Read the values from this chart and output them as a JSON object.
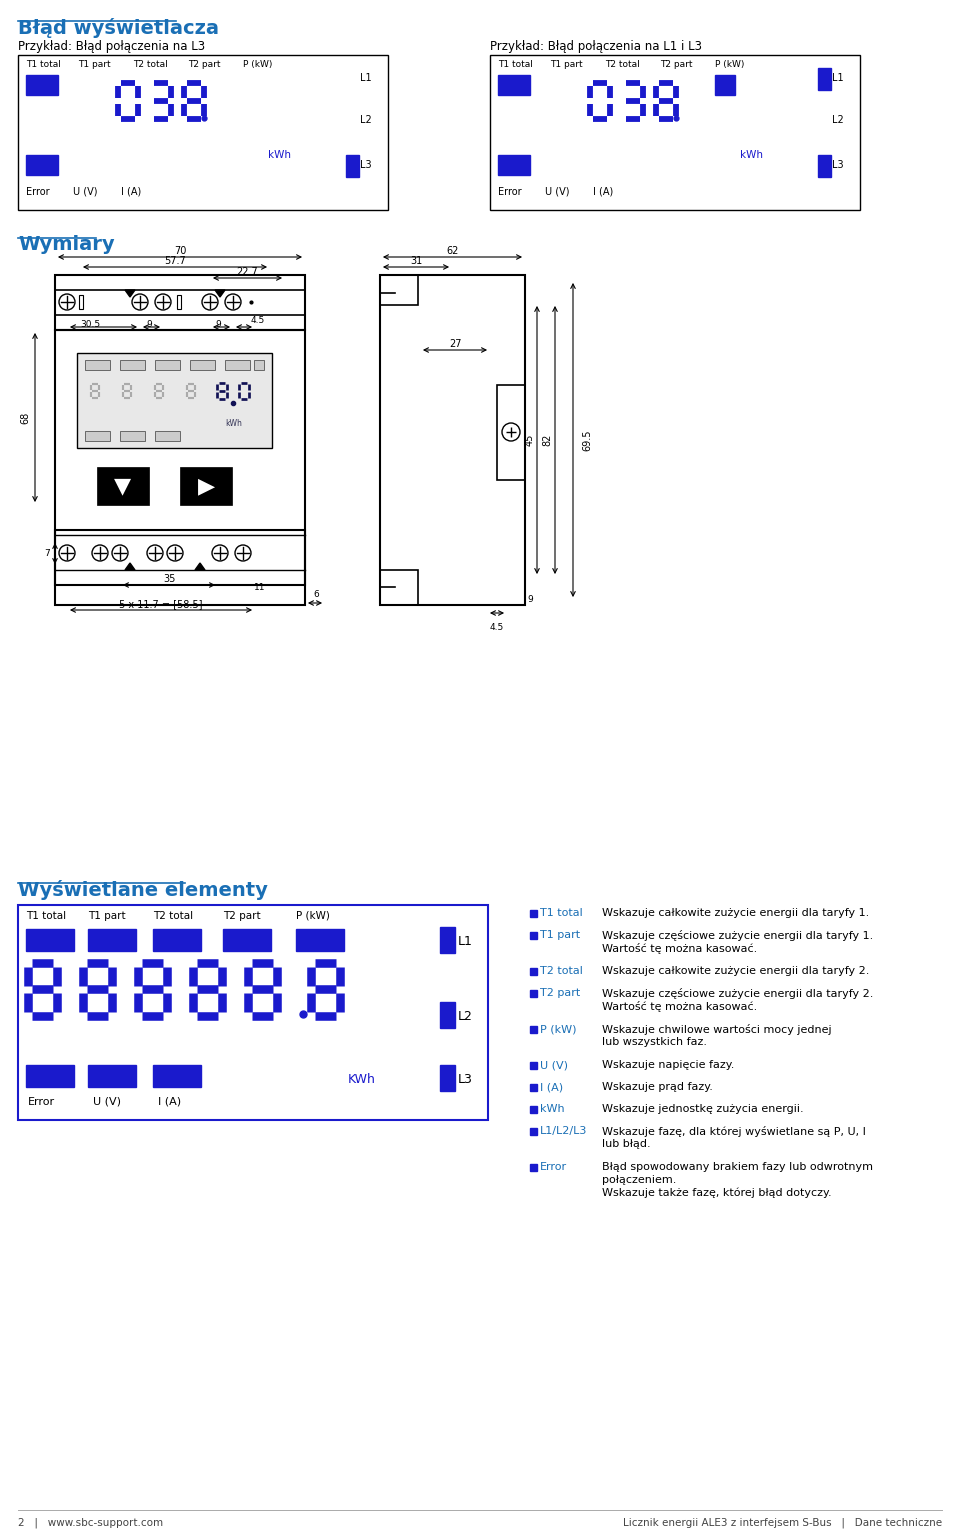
{
  "title_blad": "Błąd wyświetlacza",
  "title_wymiary": "Wymiary",
  "title_wyswietlane": "Wyświetlane elementy",
  "header_color": "#1a6fb5",
  "seg_color": "#1a1acc",
  "bg_color": "#ffffff",
  "example1_title": "Przykład: Błąd połączenia na L3",
  "example2_title": "Przykład: Błąd połączenia na L1 i L3",
  "display_labels": [
    "T1 total",
    "T1 part",
    "T2 total",
    "T2 part",
    "P (kW)"
  ],
  "kwh_label": "kWh",
  "KWh_label": "KWh",
  "dim_70": "70",
  "dim_57_7": "57.7",
  "dim_22_7": "22.7",
  "dim_30_5": "30.5",
  "dim_9a": "9",
  "dim_9b": "9",
  "dim_4_5a": "4.5",
  "dim_68": "68",
  "dim_35": "35",
  "dim_11": "11",
  "dim_7": "7",
  "dim_5x": "5 x 11.7 = [58.5]",
  "dim_6a": "6",
  "dim_62": "62",
  "dim_31": "31",
  "dim_27": "27",
  "dim_69_5": "69.5",
  "dim_82": "82",
  "dim_45": "45",
  "dim_4_5b": "4.5",
  "dim_9c": "9",
  "items": [
    {
      "label": "T1 total",
      "text": "Wskazuje całkowite zużycie energii dla taryfy 1."
    },
    {
      "label": "T1 part",
      "text": "Wskazuje częściowe zużycie energii dla taryfy 1.\nWartość tę można kasować."
    },
    {
      "label": "T2 total",
      "text": "Wskazuje całkowite zużycie energii dla taryfy 2."
    },
    {
      "label": "T2 part",
      "text": "Wskazuje częściowe zużycie energii dla taryfy 2.\nWartość tę można kasować."
    },
    {
      "label": "P (kW)",
      "text": "Wskazuje chwilowe wartości mocy jednej\nlub wszystkich faz."
    },
    {
      "label": "U (V)",
      "text": "Wskazuje napięcie fazy."
    },
    {
      "label": "I (A)",
      "text": "Wskazuje prąd fazy."
    },
    {
      "label": "kWh",
      "text": "Wskazuje jednostkę zużycia energii."
    },
    {
      "label": "L1/L2/L3",
      "text": "Wskazuje fazę, dla której wyświetlane są P, U, I\nlub błąd."
    },
    {
      "label": "Error",
      "text": "Błąd spowodowany brakiem fazy lub odwrotnym\npołączeniem.\nWskazuje także fazę, której błąd dotyczy."
    }
  ],
  "footer_left": "2   |   www.sbc-support.com",
  "footer_right": "Licznik energii ALE3 z interfejsem S-Bus   |   Dane techniczne"
}
